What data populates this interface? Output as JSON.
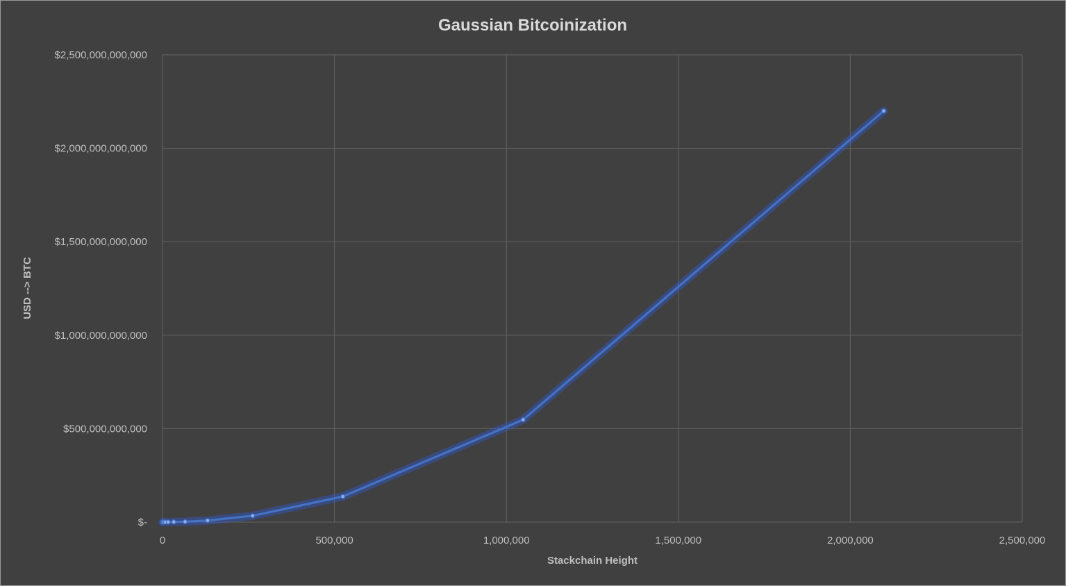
{
  "chart_data": {
    "type": "line",
    "title": "Gaussian Bitcoinization",
    "xlabel": "Stackchain Height",
    "ylabel": "USD --> BTC",
    "xlim": [
      0,
      2500000
    ],
    "ylim": [
      0,
      2500000000000
    ],
    "x_ticks": [
      0,
      500000,
      1000000,
      1500000,
      2000000,
      2500000
    ],
    "x_tick_labels": [
      "0",
      "500,000",
      "1,000,000",
      "1,500,000",
      "2,000,000",
      "2,500,000"
    ],
    "y_ticks": [
      0,
      500000000000,
      1000000000000,
      1500000000000,
      2000000000000,
      2500000000000
    ],
    "y_tick_labels": [
      "$-",
      "$500,000,000,000",
      "$1,000,000,000,000",
      "$1,500,000,000,000",
      "$2,000,000,000,000",
      "$2,500,000,000,000"
    ],
    "grid": true,
    "legend": "none",
    "series": [
      {
        "color": "#4472c4",
        "points": [
          {
            "x": 1,
            "y": 0
          },
          {
            "x": 2,
            "y": 0
          },
          {
            "x": 4,
            "y": 0
          },
          {
            "x": 8,
            "y": 0
          },
          {
            "x": 16,
            "y": 0
          },
          {
            "x": 32,
            "y": 0
          },
          {
            "x": 64,
            "y": 0
          },
          {
            "x": 128,
            "y": 0
          },
          {
            "x": 256,
            "y": 0
          },
          {
            "x": 512,
            "y": 0
          },
          {
            "x": 1024,
            "y": 0
          },
          {
            "x": 2048,
            "y": 0
          },
          {
            "x": 4096,
            "y": 100000000
          },
          {
            "x": 8192,
            "y": 200000000
          },
          {
            "x": 16384,
            "y": 500000000
          },
          {
            "x": 32768,
            "y": 1100000000
          },
          {
            "x": 65536,
            "y": 2200000000
          },
          {
            "x": 131072,
            "y": 8500000000
          },
          {
            "x": 262144,
            "y": 34000000000
          },
          {
            "x": 524288,
            "y": 137000000000
          },
          {
            "x": 1048576,
            "y": 548000000000
          },
          {
            "x": 2097152,
            "y": 2200000000000
          }
        ]
      }
    ]
  }
}
